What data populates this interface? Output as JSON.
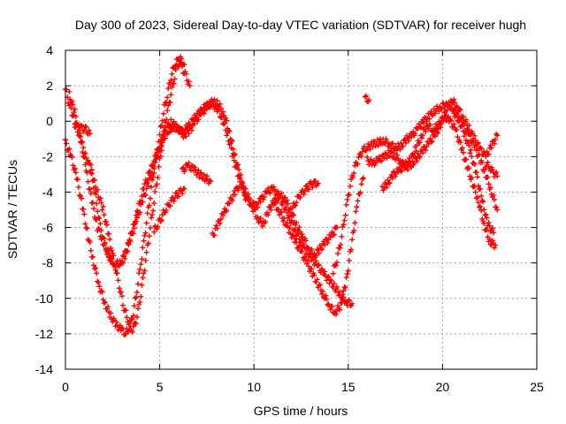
{
  "chart_data": {
    "type": "scatter",
    "title": "Day 300 of 2023, Sidereal Day-to-day VTEC variation (SDTVAR) for receiver hugh",
    "xlabel": "GPS time / hours",
    "ylabel": "SDTVAR / TECUs",
    "xlim": [
      0,
      25
    ],
    "ylim": [
      -14,
      4
    ],
    "xticks": [
      0,
      5,
      10,
      15,
      20,
      25
    ],
    "yticks": [
      -14,
      -12,
      -10,
      -8,
      -6,
      -4,
      -2,
      0,
      2,
      4
    ],
    "grid": true,
    "legend": "none",
    "marker": "plus",
    "color": "#ff0000",
    "series": [
      {
        "x": [
          0.0,
          0.2,
          0.5,
          0.8,
          1.1,
          1.4,
          1.7,
          2.0,
          2.3,
          2.5,
          2.7,
          2.9,
          3.1,
          3.3,
          3.5,
          3.7,
          3.9,
          4.1,
          4.3,
          4.5,
          4.7,
          4.9,
          5.1,
          5.3,
          5.5,
          5.7,
          5.9,
          6.1,
          6.3
        ],
        "y": [
          1.8,
          1.0,
          0.0,
          -1.0,
          -2.0,
          -3.0,
          -4.0,
          -5.0,
          -6.5,
          -7.5,
          -8.5,
          -9.5,
          -10.5,
          -11.2,
          -11.8,
          -11.5,
          -10.5,
          -9.0,
          -7.5,
          -6.0,
          -4.5,
          -3.0,
          -1.5,
          0.0,
          1.0,
          2.0,
          3.0,
          3.5,
          3.2
        ]
      },
      {
        "x": [
          0.0,
          0.3,
          0.6,
          0.9,
          1.2,
          1.5,
          1.8,
          2.1,
          2.4,
          2.7,
          3.0,
          3.2,
          3.4,
          3.6,
          3.8,
          4.0,
          4.2,
          4.4,
          4.6,
          4.8,
          5.0,
          5.2,
          5.4,
          5.6,
          5.8,
          6.0,
          6.2,
          6.4,
          6.6
        ],
        "y": [
          -1.2,
          -2.0,
          -3.2,
          -4.8,
          -6.5,
          -8.0,
          -9.3,
          -10.3,
          -11.0,
          -11.5,
          -11.8,
          -12.0,
          -11.6,
          -10.8,
          -9.5,
          -8.0,
          -6.5,
          -5.0,
          -3.5,
          -2.0,
          -0.8,
          0.5,
          1.5,
          2.5,
          3.2,
          3.5,
          3.0,
          2.5,
          2.0
        ]
      },
      {
        "x": [
          0.2,
          0.5,
          0.8,
          1.1,
          1.4,
          1.7,
          2.0,
          2.3,
          2.6,
          2.9,
          3.2,
          3.5,
          3.8,
          4.1,
          4.4,
          4.7,
          5.0,
          5.3,
          5.6,
          5.9,
          6.2,
          6.5,
          6.8,
          7.1,
          7.4,
          7.7,
          8.0,
          8.3,
          8.6,
          8.9,
          9.2,
          9.5
        ],
        "y": [
          1.5,
          0.5,
          -1.0,
          -2.8,
          -4.5,
          -6.0,
          -6.8,
          -7.6,
          -8.1,
          -8.0,
          -7.5,
          -6.5,
          -5.5,
          -4.5,
          -3.5,
          -2.5,
          -1.5,
          -0.5,
          0.0,
          -0.4,
          -0.6,
          -0.3,
          0.1,
          0.5,
          0.8,
          1.0,
          0.8,
          0.2,
          -0.8,
          -2.0,
          -3.2,
          -4.2
        ]
      },
      {
        "x": [
          3.0,
          3.3,
          3.6,
          3.9,
          4.2,
          4.5,
          4.8,
          5.1,
          5.4,
          5.7,
          6.0,
          6.3,
          6.6,
          6.9,
          7.2,
          7.5,
          7.8,
          8.1,
          8.4,
          8.7,
          9.0,
          9.3,
          9.6
        ],
        "y": [
          -8.0,
          -7.0,
          -6.0,
          -4.8,
          -3.6,
          -2.8,
          -2.0,
          -1.2,
          -0.6,
          -0.3,
          -0.4,
          -0.8,
          -0.5,
          0.0,
          0.4,
          0.8,
          1.1,
          1.0,
          0.4,
          -0.6,
          -2.0,
          -3.2,
          -4.3
        ]
      },
      {
        "x": [
          0.5,
          0.7,
          0.9,
          1.1,
          1.3
        ],
        "y": [
          -0.2,
          -0.3,
          -0.4,
          -0.5,
          -0.7
        ]
      },
      {
        "x": [
          1.3,
          1.5,
          1.7,
          1.9,
          2.1,
          2.3,
          2.5
        ],
        "y": [
          -2.2,
          -3.6,
          -5.0,
          -6.2,
          -7.0,
          -7.5,
          -8.0
        ]
      },
      {
        "x": [
          4.7,
          4.9,
          5.1,
          5.3,
          5.5,
          5.7,
          5.9,
          6.1,
          6.3
        ],
        "y": [
          -6.2,
          -5.8,
          -5.4,
          -5.0,
          -4.7,
          -4.4,
          -4.2,
          -4.0,
          -3.8
        ]
      },
      {
        "x": [
          6.2,
          6.5,
          6.8,
          7.1,
          7.4,
          7.7
        ],
        "y": [
          -2.8,
          -2.5,
          -2.7,
          -3.0,
          -3.2,
          -3.4
        ]
      },
      {
        "x": [
          7.8,
          8.1,
          8.4,
          8.7,
          9.0,
          9.3,
          9.6,
          9.9,
          10.2,
          10.5,
          10.8,
          11.1,
          11.4,
          11.7,
          12.0,
          12.3,
          12.6,
          12.9,
          13.2,
          13.5,
          13.8,
          14.1,
          14.4
        ],
        "y": [
          -6.5,
          -5.8,
          -5.2,
          -4.6,
          -4.0,
          -3.5,
          -4.0,
          -4.8,
          -5.5,
          -5.8,
          -5.0,
          -4.5,
          -4.2,
          -4.5,
          -5.2,
          -6.0,
          -6.5,
          -7.2,
          -7.6,
          -7.2,
          -6.8,
          -6.5,
          -6.0
        ]
      },
      {
        "x": [
          9.5,
          9.8,
          10.1,
          10.4,
          10.7,
          11.0,
          11.3,
          11.6,
          11.9,
          12.2,
          12.5,
          12.8,
          13.1,
          13.4,
          13.7,
          14.0,
          14.3,
          14.6,
          14.9,
          15.2
        ],
        "y": [
          -4.2,
          -4.6,
          -4.8,
          -4.4,
          -4.0,
          -3.8,
          -4.2,
          -4.8,
          -5.5,
          -6.2,
          -6.8,
          -7.4,
          -7.8,
          -8.2,
          -8.6,
          -9.0,
          -9.4,
          -9.8,
          -10.2,
          -10.3
        ]
      },
      {
        "x": [
          11.0,
          11.3,
          11.6,
          11.9,
          12.2,
          12.5,
          12.8,
          13.1,
          13.4,
          13.7,
          14.0,
          14.3,
          14.6,
          14.9,
          15.2,
          15.5,
          15.8
        ],
        "y": [
          -4.5,
          -5.0,
          -5.6,
          -6.2,
          -6.8,
          -7.4,
          -8.0,
          -8.6,
          -9.2,
          -9.8,
          -10.4,
          -10.8,
          -10.4,
          -9.0,
          -6.8,
          -4.5,
          -3.2
        ]
      },
      {
        "x": [
          12.0,
          12.2,
          12.4,
          12.6,
          12.8,
          13.0,
          13.2,
          13.4
        ],
        "y": [
          -5.0,
          -4.6,
          -4.2,
          -4.0,
          -3.8,
          -3.6,
          -3.5,
          -3.5
        ]
      },
      {
        "x": [
          14.2,
          14.4,
          14.6,
          14.8,
          15.0,
          15.2,
          15.4,
          15.6,
          15.8,
          16.0,
          16.3,
          16.6,
          16.9,
          17.2,
          17.5,
          17.8,
          18.1,
          18.4,
          18.7,
          19.0,
          19.3,
          19.6,
          19.9,
          20.2,
          20.5,
          20.8,
          21.1,
          21.4,
          21.7,
          22.0,
          22.3,
          22.6,
          22.9
        ],
        "y": [
          -8.5,
          -7.8,
          -6.8,
          -5.5,
          -4.2,
          -3.2,
          -2.5,
          -2.0,
          -1.6,
          -1.5,
          -1.3,
          -1.2,
          -1.1,
          -1.3,
          -1.5,
          -1.4,
          -1.0,
          -0.8,
          -0.4,
          0.0,
          0.3,
          0.6,
          0.8,
          1.0,
          0.8,
          0.4,
          -0.2,
          -0.8,
          -1.4,
          -2.2,
          -3.0,
          -4.0,
          -5.0
        ]
      },
      {
        "x": [
          15.9,
          16.1
        ],
        "y": [
          1.3,
          1.2
        ]
      },
      {
        "x": [
          16.0,
          16.3,
          16.6,
          16.9,
          17.2,
          17.5,
          17.8,
          18.1,
          18.4,
          18.7,
          19.0,
          19.3,
          19.6,
          19.9,
          20.2,
          20.5,
          20.8,
          21.1,
          21.4,
          21.7,
          22.0,
          22.3,
          22.6,
          22.9
        ],
        "y": [
          -2.2,
          -2.4,
          -2.2,
          -2.0,
          -1.8,
          -2.0,
          -2.3,
          -2.6,
          -2.4,
          -2.0,
          -1.6,
          -1.2,
          -0.8,
          -0.2,
          0.5,
          1.2,
          0.8,
          0.2,
          -0.4,
          -1.0,
          -1.6,
          -2.0,
          -1.4,
          -0.8
        ]
      },
      {
        "x": [
          16.8,
          17.1,
          17.4,
          17.7,
          18.0,
          18.3,
          18.6,
          18.9,
          19.2,
          19.5,
          19.8,
          20.1,
          20.4,
          20.7,
          21.0,
          21.3,
          21.6,
          21.9,
          22.2,
          22.5,
          22.8
        ],
        "y": [
          -3.8,
          -3.5,
          -3.0,
          -2.8,
          -2.5,
          -2.2,
          -1.5,
          -0.8,
          -0.2,
          -0.5,
          -0.2,
          0.3,
          0.0,
          -0.5,
          -1.5,
          -2.5,
          -3.5,
          -4.5,
          -5.8,
          -6.8,
          -7.0
        ]
      },
      {
        "x": [
          20.6,
          20.9,
          21.2,
          21.5,
          21.8,
          22.1,
          22.4,
          22.7
        ],
        "y": [
          0.5,
          0.0,
          -0.8,
          -1.8,
          -3.0,
          -4.5,
          -5.8,
          -6.3
        ]
      },
      {
        "x": [
          22.3,
          22.5,
          22.7,
          22.9
        ],
        "y": [
          -2.4,
          -2.6,
          -2.9,
          -3.1
        ]
      }
    ]
  }
}
